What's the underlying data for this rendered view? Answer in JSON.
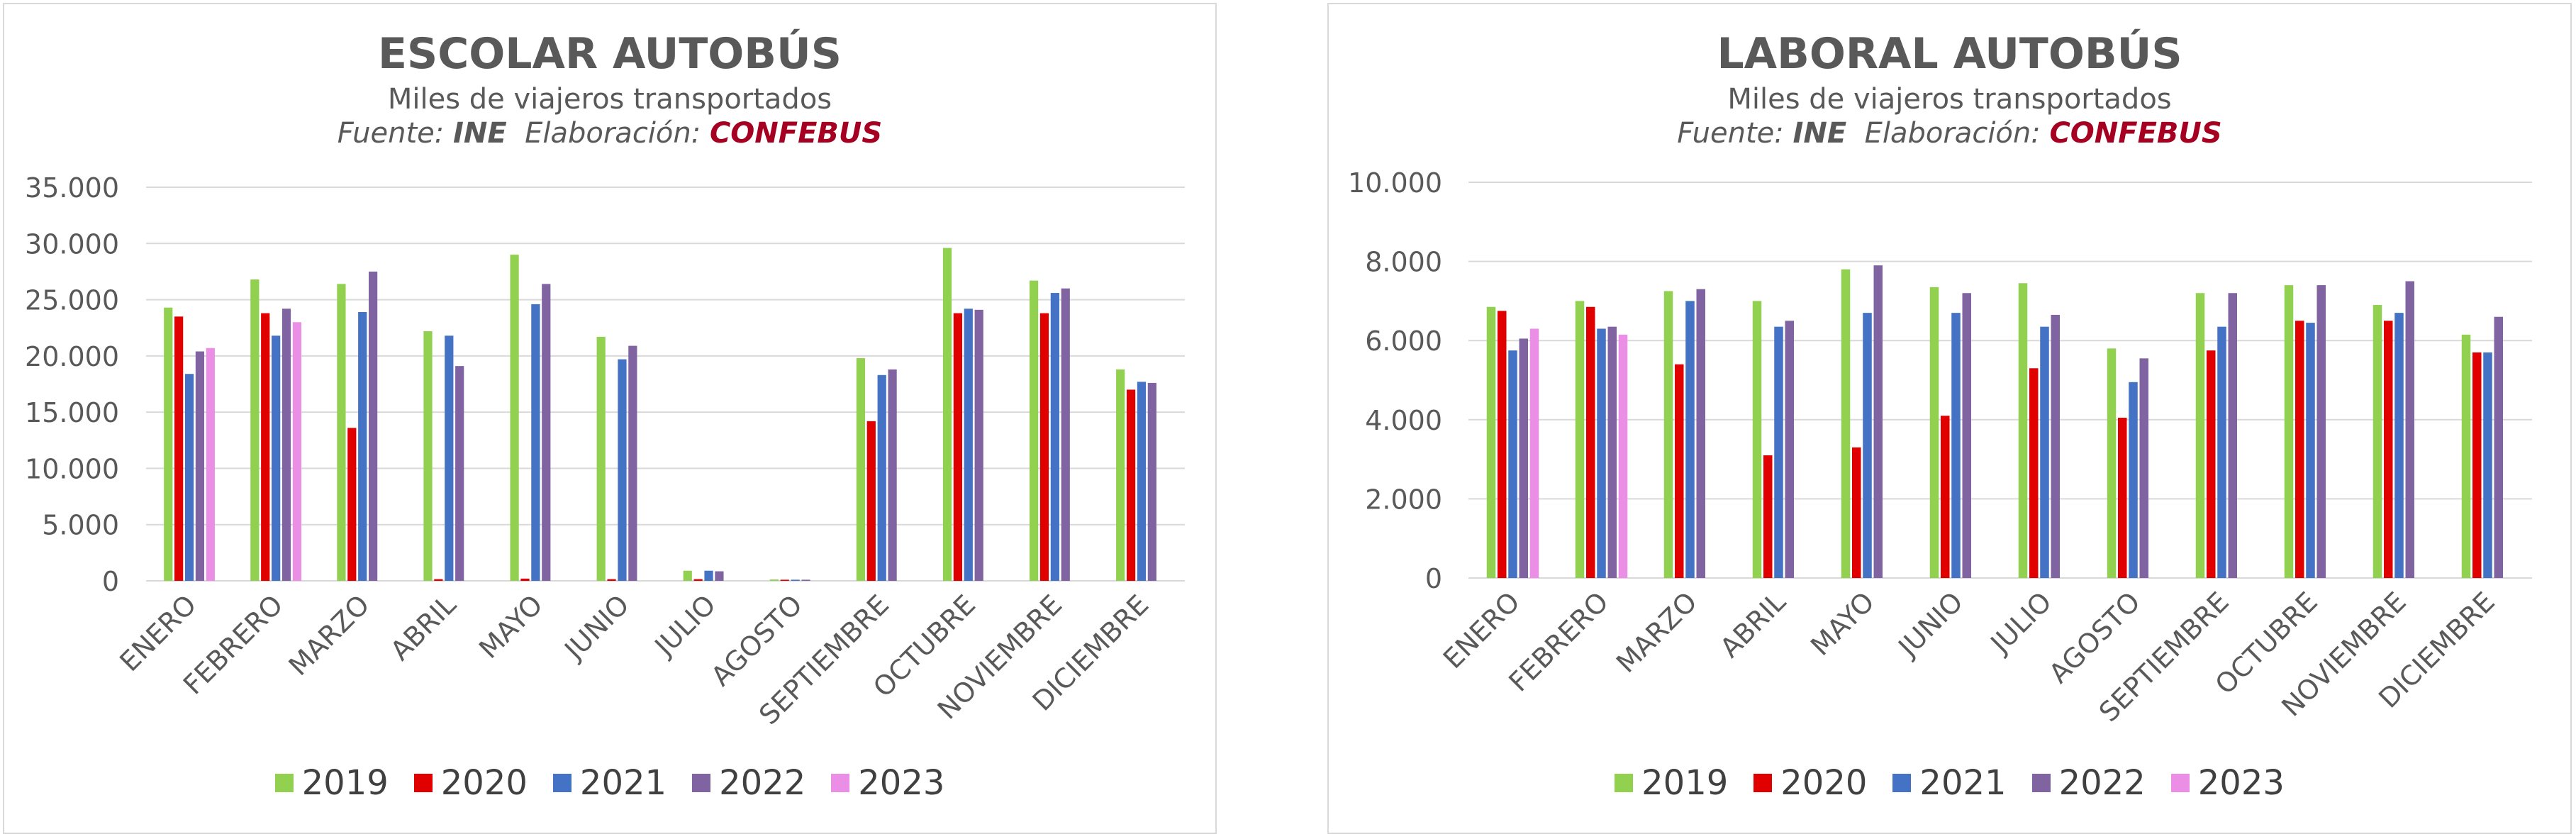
{
  "colors": {
    "2019": "#92d050",
    "2020": "#e00000",
    "2021": "#4472c4",
    "2022": "#8064a2",
    "2023": "#ea8ee6"
  },
  "chart_data": [
    {
      "type": "bar",
      "title": "ESCOLAR AUTOBÚS",
      "subtitle": "Miles de viajeros transportados",
      "source_prefix": "Fuente: ",
      "source_name": "INE",
      "elab_prefix": "Elaboración: ",
      "elab_name": "CONFEBUS",
      "categories": [
        "ENERO",
        "FEBRERO",
        "MARZO",
        "ABRIL",
        "MAYO",
        "JUNIO",
        "JULIO",
        "AGOSTO",
        "SEPTIEMBRE",
        "OCTUBRE",
        "NOVIEMBRE",
        "DICIEMBRE"
      ],
      "ylim": [
        0,
        35000
      ],
      "yticks": [
        0,
        5000,
        10000,
        15000,
        20000,
        25000,
        30000,
        35000
      ],
      "ytick_labels": [
        "0",
        "5.000",
        "10.000",
        "15.000",
        "20.000",
        "25.000",
        "30.000",
        "35.000"
      ],
      "grid": true,
      "legend_position": "bottom",
      "series": [
        {
          "name": "2019",
          "values": [
            24300,
            26800,
            26400,
            22200,
            29000,
            21700,
            900,
            120,
            19800,
            29600,
            26700,
            18800
          ]
        },
        {
          "name": "2020",
          "values": [
            23500,
            23800,
            13600,
            150,
            200,
            150,
            150,
            100,
            14200,
            23800,
            23800,
            17000
          ]
        },
        {
          "name": "2021",
          "values": [
            18400,
            21800,
            23900,
            21800,
            24600,
            19700,
            900,
            100,
            18300,
            24200,
            25600,
            17700
          ]
        },
        {
          "name": "2022",
          "values": [
            20400,
            24200,
            27500,
            19100,
            26400,
            20900,
            850,
            100,
            18800,
            24100,
            26000,
            17600
          ]
        },
        {
          "name": "2023",
          "values": [
            20700,
            23000,
            null,
            null,
            null,
            null,
            null,
            null,
            null,
            null,
            null,
            null
          ]
        }
      ]
    },
    {
      "type": "bar",
      "title": "LABORAL AUTOBÚS",
      "subtitle": "Miles de viajeros transportados",
      "source_prefix": "Fuente: ",
      "source_name": "INE",
      "elab_prefix": "Elaboración: ",
      "elab_name": "CONFEBUS",
      "categories": [
        "ENERO",
        "FEBRERO",
        "MARZO",
        "ABRIL",
        "MAYO",
        "JUNIO",
        "JULIO",
        "AGOSTO",
        "SEPTIEMBRE",
        "OCTUBRE",
        "NOVIEMBRE",
        "DICIEMBRE"
      ],
      "ylim": [
        0,
        10000
      ],
      "yticks": [
        0,
        2000,
        4000,
        6000,
        8000,
        10000
      ],
      "ytick_labels": [
        "0",
        "2.000",
        "4.000",
        "6.000",
        "8.000",
        "10.000"
      ],
      "grid": true,
      "legend_position": "bottom",
      "series": [
        {
          "name": "2019",
          "values": [
            6850,
            7000,
            7250,
            7000,
            7800,
            7350,
            7450,
            5800,
            7200,
            7400,
            6900,
            6150
          ]
        },
        {
          "name": "2020",
          "values": [
            6750,
            6850,
            5400,
            3100,
            3300,
            4100,
            5300,
            4050,
            5750,
            6500,
            6500,
            5700
          ]
        },
        {
          "name": "2021",
          "values": [
            5750,
            6300,
            7000,
            6350,
            6700,
            6700,
            6350,
            4950,
            6350,
            6450,
            6700,
            5700
          ]
        },
        {
          "name": "2022",
          "values": [
            6050,
            6350,
            7300,
            6500,
            7900,
            7200,
            6650,
            5550,
            7200,
            7400,
            7500,
            6600
          ]
        },
        {
          "name": "2023",
          "values": [
            6300,
            6150,
            null,
            null,
            null,
            null,
            null,
            null,
            null,
            null,
            null,
            null
          ]
        }
      ]
    }
  ]
}
